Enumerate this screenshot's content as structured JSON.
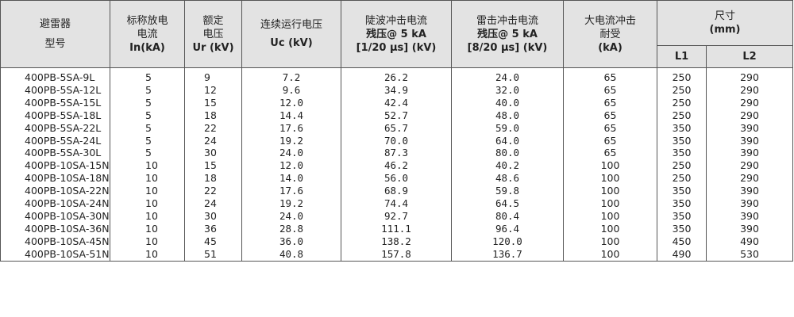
{
  "headers": {
    "model": [
      "避雷器",
      "型号"
    ],
    "in": [
      "标称放电",
      "电流",
      "In(kA)"
    ],
    "ur": [
      "额定",
      "电压",
      "Ur (kV)"
    ],
    "uc": [
      "连续运行电压",
      "Uc (kV)"
    ],
    "steep": [
      "陡波冲击电流",
      "残压@ 5 kA",
      "[1/20 μs] (kV)"
    ],
    "lightning": [
      "雷击冲击电流",
      "残压@ 5 kA",
      "[8/20 μs] (kV)"
    ],
    "high_current": [
      "大电流冲击",
      "耐受",
      "(kA)"
    ],
    "size": [
      "尺寸",
      "(mm)"
    ],
    "l1": "L1",
    "l2": "L2"
  },
  "rows": [
    {
      "model": "400PB-5SA-9L",
      "in": "5",
      "ur": "9",
      "uc": "7.2",
      "steep": "26.2",
      "lightning": "24.0",
      "high": "65",
      "l1": "250",
      "l2": "290"
    },
    {
      "model": "400PB-5SA-12L",
      "in": "5",
      "ur": "12",
      "uc": "9.6",
      "steep": "34.9",
      "lightning": "32.0",
      "high": "65",
      "l1": "250",
      "l2": "290"
    },
    {
      "model": "400PB-5SA-15L",
      "in": "5",
      "ur": "15",
      "uc": "12.0",
      "steep": "42.4",
      "lightning": "40.0",
      "high": "65",
      "l1": "250",
      "l2": "290"
    },
    {
      "model": "400PB-5SA-18L",
      "in": "5",
      "ur": "18",
      "uc": "14.4",
      "steep": "52.7",
      "lightning": "48.0",
      "high": "65",
      "l1": "250",
      "l2": "290"
    },
    {
      "model": "400PB-5SA-22L",
      "in": "5",
      "ur": "22",
      "uc": "17.6",
      "steep": "65.7",
      "lightning": "59.0",
      "high": "65",
      "l1": "350",
      "l2": "390"
    },
    {
      "model": "400PB-5SA-24L",
      "in": "5",
      "ur": "24",
      "uc": "19.2",
      "steep": "70.0",
      "lightning": "64.0",
      "high": "65",
      "l1": "350",
      "l2": "390"
    },
    {
      "model": "400PB-5SA-30L",
      "in": "5",
      "ur": "30",
      "uc": "24.0",
      "steep": "87.3",
      "lightning": "80.0",
      "high": "65",
      "l1": "350",
      "l2": "390"
    },
    {
      "model": "400PB-10SA-15N",
      "in": "10",
      "ur": "15",
      "uc": "12.0",
      "steep": "46.2",
      "lightning": "40.2",
      "high": "100",
      "l1": "250",
      "l2": "290"
    },
    {
      "model": "400PB-10SA-18N",
      "in": "10",
      "ur": "18",
      "uc": "14.0",
      "steep": "56.0",
      "lightning": "48.6",
      "high": "100",
      "l1": "250",
      "l2": "290"
    },
    {
      "model": "400PB-10SA-22N",
      "in": "10",
      "ur": "22",
      "uc": "17.6",
      "steep": "68.9",
      "lightning": "59.8",
      "high": "100",
      "l1": "350",
      "l2": "390"
    },
    {
      "model": "400PB-10SA-24N",
      "in": "10",
      "ur": "24",
      "uc": "19.2",
      "steep": "74.4",
      "lightning": "64.5",
      "high": "100",
      "l1": "350",
      "l2": "390"
    },
    {
      "model": "400PB-10SA-30N",
      "in": "10",
      "ur": "30",
      "uc": "24.0",
      "steep": "92.7",
      "lightning": "80.4",
      "high": "100",
      "l1": "350",
      "l2": "390"
    },
    {
      "model": "400PB-10SA-36N",
      "in": "10",
      "ur": "36",
      "uc": "28.8",
      "steep": "111.1",
      "lightning": "96.4",
      "high": "100",
      "l1": "350",
      "l2": "390"
    },
    {
      "model": "400PB-10SA-45N",
      "in": "10",
      "ur": "45",
      "uc": "36.0",
      "steep": "138.2",
      "lightning": "120.0",
      "high": "100",
      "l1": "450",
      "l2": "490"
    },
    {
      "model": "400PB-10SA-51N",
      "in": "10",
      "ur": "51",
      "uc": "40.8",
      "steep": "157.8",
      "lightning": "136.7",
      "high": "100",
      "l1": "490",
      "l2": "530"
    }
  ]
}
